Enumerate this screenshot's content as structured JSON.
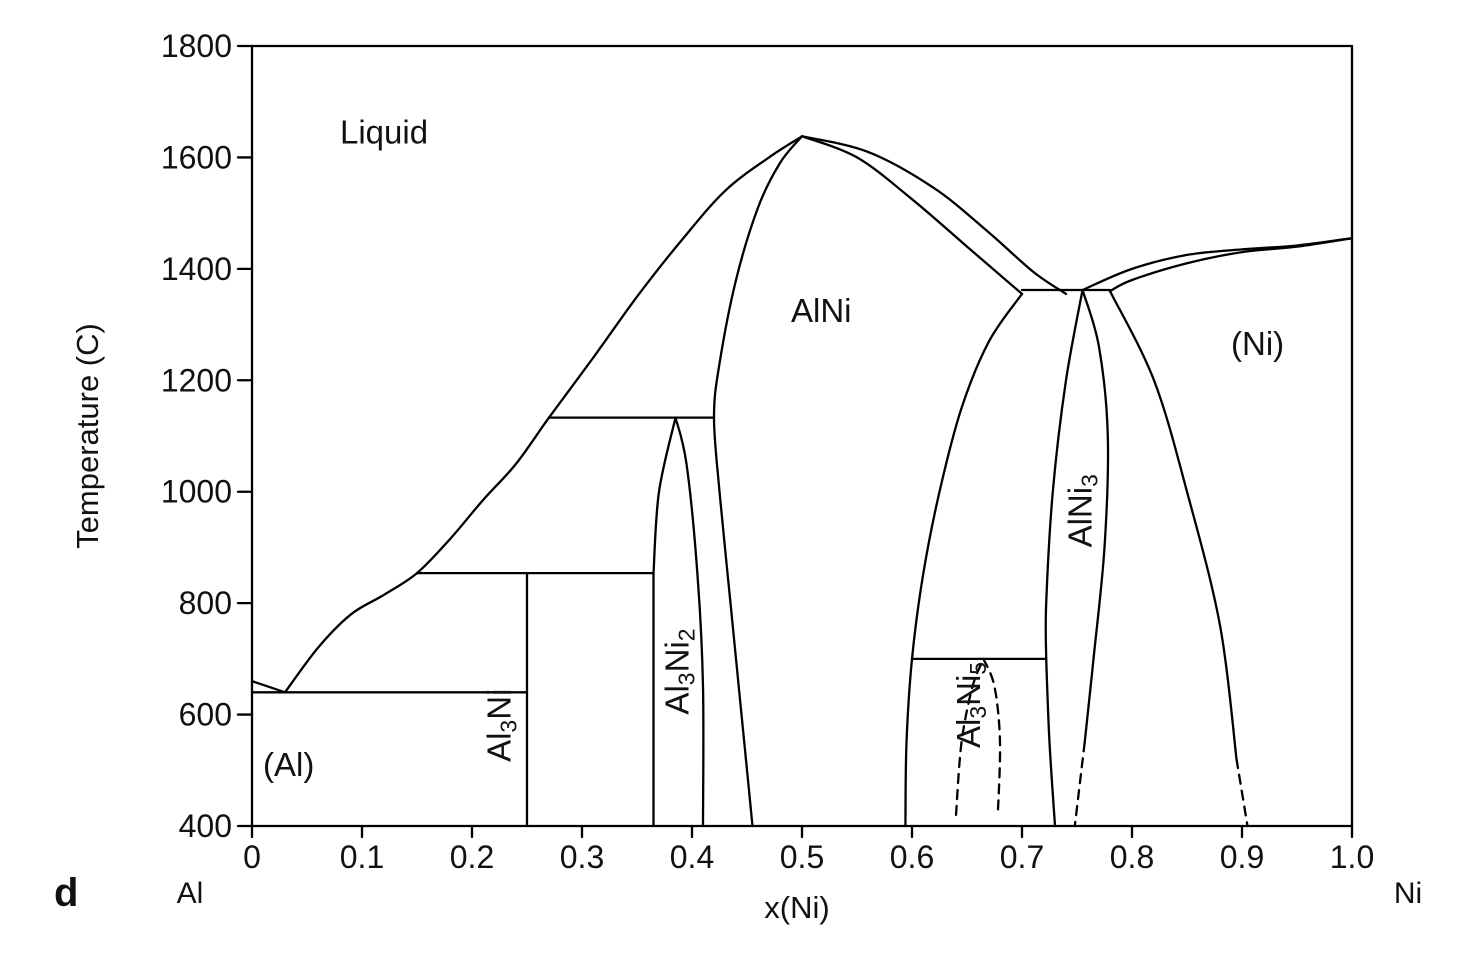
{
  "panel_letter": "d",
  "chart_data": {
    "type": "phase-diagram",
    "title": "",
    "xlabel": "x(Ni)",
    "ylabel": "Temperature (C)",
    "xlim": [
      0,
      1.0
    ],
    "ylim": [
      400,
      1800
    ],
    "x_ticks": [
      {
        "value": 0,
        "label": "0"
      },
      {
        "value": 0.1,
        "label": "0.1"
      },
      {
        "value": 0.2,
        "label": "0.2"
      },
      {
        "value": 0.3,
        "label": "0.3"
      },
      {
        "value": 0.4,
        "label": "0.4"
      },
      {
        "value": 0.5,
        "label": "0.5"
      },
      {
        "value": 0.6,
        "label": "0.6"
      },
      {
        "value": 0.7,
        "label": "0.7"
      },
      {
        "value": 0.8,
        "label": "0.8"
      },
      {
        "value": 0.9,
        "label": "0.9"
      },
      {
        "value": 1.0,
        "label": "1.0"
      }
    ],
    "y_ticks": [
      {
        "value": 400,
        "label": "400"
      },
      {
        "value": 600,
        "label": "600"
      },
      {
        "value": 800,
        "label": "800"
      },
      {
        "value": 1000,
        "label": "1000"
      },
      {
        "value": 1200,
        "label": "1200"
      },
      {
        "value": 1400,
        "label": "1400"
      },
      {
        "value": 1600,
        "label": "1600"
      },
      {
        "value": 1800,
        "label": "1800"
      }
    ],
    "end_labels": [
      {
        "x": 0,
        "text": "Al"
      },
      {
        "x": 1.0,
        "text": "Ni"
      }
    ],
    "regions": [
      {
        "id": "liquid",
        "base": "Liquid",
        "sub": "",
        "x": 0.08,
        "y": 1625,
        "rotate": false
      },
      {
        "id": "alni",
        "base": "AlNi",
        "sub": "",
        "x": 0.49,
        "y": 1305,
        "rotate": false
      },
      {
        "id": "ni",
        "base": "(Ni)",
        "sub": "",
        "x": 0.89,
        "y": 1245,
        "rotate": false
      },
      {
        "id": "al",
        "base": "(Al)",
        "sub": "",
        "x": 0.01,
        "y": 490,
        "rotate": false
      },
      {
        "id": "al3ni",
        "parts": [
          {
            "t": "Al",
            "sub": false
          },
          {
            "t": "3",
            "sub": true
          },
          {
            "t": "Ni",
            "sub": false
          }
        ],
        "x": 0.235,
        "y": 515,
        "rotate": true
      },
      {
        "id": "al3ni2",
        "parts": [
          {
            "t": "Al",
            "sub": false
          },
          {
            "t": "3",
            "sub": true
          },
          {
            "t": "Ni",
            "sub": false
          },
          {
            "t": "2",
            "sub": true
          }
        ],
        "x": 0.397,
        "y": 600,
        "rotate": true
      },
      {
        "id": "al3ni5",
        "parts": [
          {
            "t": "Al",
            "sub": false
          },
          {
            "t": "3",
            "sub": true
          },
          {
            "t": "Ni",
            "sub": false
          },
          {
            "t": "5",
            "sub": true
          }
        ],
        "x": 0.662,
        "y": 540,
        "rotate": true
      },
      {
        "id": "alni3",
        "parts": [
          {
            "t": "AlNi",
            "sub": false
          },
          {
            "t": "3",
            "sub": true
          }
        ],
        "x": 0.763,
        "y": 900,
        "rotate": true
      }
    ],
    "curves": [
      {
        "name": "al-liquidus-short",
        "style": "solid",
        "points": [
          [
            0,
            660
          ],
          [
            0.03,
            640
          ]
        ]
      },
      {
        "name": "liquidus-al-side",
        "style": "solid",
        "points": [
          [
            0.03,
            640
          ],
          [
            0.06,
            720
          ],
          [
            0.09,
            780
          ],
          [
            0.12,
            815
          ],
          [
            0.15,
            854
          ],
          [
            0.18,
            915
          ],
          [
            0.21,
            985
          ],
          [
            0.24,
            1050
          ],
          [
            0.27,
            1133
          ],
          [
            0.31,
            1240
          ],
          [
            0.35,
            1350
          ],
          [
            0.39,
            1450
          ],
          [
            0.43,
            1540
          ],
          [
            0.47,
            1600
          ],
          [
            0.5,
            1638
          ]
        ]
      },
      {
        "name": "liquidus-ni-side-alni",
        "style": "solid",
        "points": [
          [
            0.5,
            1638
          ],
          [
            0.56,
            1610
          ],
          [
            0.62,
            1545
          ],
          [
            0.67,
            1465
          ],
          [
            0.71,
            1395
          ],
          [
            0.74,
            1355
          ]
        ]
      },
      {
        "name": "alni-solidus-ni-side",
        "style": "solid",
        "points": [
          [
            0.5,
            1638
          ],
          [
            0.55,
            1600
          ],
          [
            0.6,
            1525
          ],
          [
            0.65,
            1440
          ],
          [
            0.7,
            1355
          ]
        ]
      },
      {
        "name": "alni-left-boundary",
        "style": "solid",
        "points": [
          [
            0.5,
            1638
          ],
          [
            0.48,
            1590
          ],
          [
            0.46,
            1510
          ],
          [
            0.44,
            1380
          ],
          [
            0.425,
            1230
          ],
          [
            0.42,
            1133
          ],
          [
            0.425,
            1000
          ],
          [
            0.435,
            800
          ],
          [
            0.445,
            600
          ],
          [
            0.455,
            400
          ]
        ]
      },
      {
        "name": "alni-right-boundary",
        "style": "solid",
        "points": [
          [
            0.7,
            1355
          ],
          [
            0.67,
            1270
          ],
          [
            0.645,
            1150
          ],
          [
            0.625,
            1000
          ],
          [
            0.61,
            850
          ],
          [
            0.6,
            700
          ],
          [
            0.595,
            550
          ],
          [
            0.594,
            400
          ]
        ]
      },
      {
        "name": "al3ni2-left",
        "style": "solid",
        "points": [
          [
            0.365,
            854
          ],
          [
            0.37,
            1000
          ],
          [
            0.385,
            1133
          ]
        ]
      },
      {
        "name": "al3ni2-right",
        "style": "solid",
        "points": [
          [
            0.385,
            1133
          ],
          [
            0.395,
            1050
          ],
          [
            0.405,
            850
          ],
          [
            0.41,
            650
          ],
          [
            0.41,
            400
          ]
        ]
      },
      {
        "name": "al3ni2-left-lower",
        "style": "solid",
        "points": [
          [
            0.365,
            854
          ],
          [
            0.365,
            400
          ]
        ]
      },
      {
        "name": "al3ni-line",
        "style": "solid",
        "points": [
          [
            0.25,
            854
          ],
          [
            0.25,
            400
          ]
        ]
      },
      {
        "name": "alni3-left",
        "style": "solid",
        "points": [
          [
            0.755,
            1362
          ],
          [
            0.74,
            1200
          ],
          [
            0.728,
            1000
          ],
          [
            0.722,
            800
          ],
          [
            0.722,
            700
          ]
        ]
      },
      {
        "name": "alni3-left-lower",
        "style": "solid",
        "points": [
          [
            0.722,
            700
          ],
          [
            0.725,
            550
          ],
          [
            0.73,
            400
          ]
        ]
      },
      {
        "name": "alni3-right",
        "style": "solid",
        "points": [
          [
            0.755,
            1362
          ],
          [
            0.77,
            1260
          ],
          [
            0.778,
            1100
          ],
          [
            0.775,
            900
          ],
          [
            0.765,
            700
          ],
          [
            0.757,
            550
          ]
        ]
      },
      {
        "name": "alni3-right-lower",
        "style": "dashed",
        "points": [
          [
            0.757,
            550
          ],
          [
            0.748,
            400
          ]
        ]
      },
      {
        "name": "ni-solvus",
        "style": "solid",
        "points": [
          [
            0.78,
            1360
          ],
          [
            0.82,
            1200
          ],
          [
            0.85,
            1000
          ],
          [
            0.88,
            760
          ],
          [
            0.895,
            520
          ]
        ]
      },
      {
        "name": "ni-solvus-lower",
        "style": "dashed",
        "points": [
          [
            0.895,
            520
          ],
          [
            0.905,
            400
          ]
        ]
      },
      {
        "name": "ni-liquidus",
        "style": "solid",
        "points": [
          [
            0.755,
            1362
          ],
          [
            0.8,
            1400
          ],
          [
            0.85,
            1425
          ],
          [
            0.9,
            1435
          ],
          [
            0.95,
            1442
          ],
          [
            1.0,
            1455
          ]
        ]
      },
      {
        "name": "ni-solidus",
        "style": "solid",
        "points": [
          [
            0.78,
            1360
          ],
          [
            0.8,
            1380
          ],
          [
            0.85,
            1410
          ],
          [
            0.9,
            1430
          ],
          [
            0.95,
            1440
          ],
          [
            1.0,
            1455
          ]
        ]
      },
      {
        "name": "al3ni5-dome-left",
        "style": "dashed",
        "points": [
          [
            0.64,
            420
          ],
          [
            0.645,
            550
          ],
          [
            0.655,
            650
          ],
          [
            0.665,
            700
          ]
        ]
      },
      {
        "name": "al3ni5-dome-right",
        "style": "dashed",
        "points": [
          [
            0.665,
            700
          ],
          [
            0.675,
            650
          ],
          [
            0.68,
            550
          ],
          [
            0.678,
            420
          ]
        ]
      },
      {
        "name": "al-eutectic-line",
        "style": "solid",
        "points": [
          [
            0,
            640
          ],
          [
            0.25,
            640
          ]
        ]
      },
      {
        "name": "al3ni-peritectic-line",
        "style": "solid",
        "points": [
          [
            0.15,
            854
          ],
          [
            0.365,
            854
          ]
        ]
      },
      {
        "name": "al3ni2-peritectic-line",
        "style": "solid",
        "points": [
          [
            0.27,
            1133
          ],
          [
            0.42,
            1133
          ]
        ]
      },
      {
        "name": "alni-alni3-peritectic-line",
        "style": "solid",
        "points": [
          [
            0.7,
            1362
          ],
          [
            0.755,
            1362
          ]
        ]
      },
      {
        "name": "alni3-ni-eutectic-line",
        "style": "solid",
        "points": [
          [
            0.755,
            1362
          ],
          [
            0.78,
            1362
          ]
        ]
      },
      {
        "name": "al3ni5-line",
        "style": "solid",
        "points": [
          [
            0.6,
            700
          ],
          [
            0.722,
            700
          ]
        ]
      }
    ]
  }
}
